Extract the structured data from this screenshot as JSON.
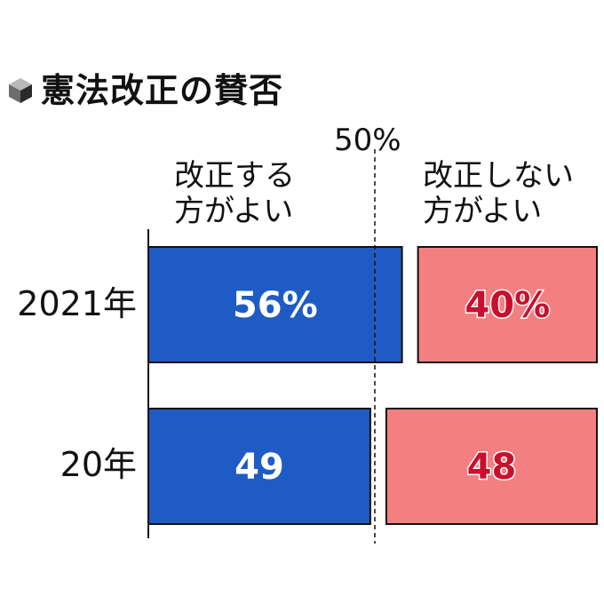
{
  "title": "憲法改正の賛否",
  "title_icon": "cube-icon",
  "reference_label": "50%",
  "chart_data": {
    "type": "bar",
    "orientation": "horizontal",
    "title": "憲法改正の賛否",
    "categories": [
      "2021年",
      "20年"
    ],
    "series": [
      {
        "name": "改正する\n方がよい",
        "values": [
          56,
          49
        ],
        "labels": [
          "56%",
          "49"
        ],
        "color": "#1f5bc4"
      },
      {
        "name": "改正しない\n方がよい",
        "values": [
          40,
          48
        ],
        "labels": [
          "40%",
          "48"
        ],
        "color": "#f47f80"
      }
    ],
    "reference_line": 50,
    "data_label_colors": [
      "#ffffff",
      "#c8102e"
    ]
  }
}
